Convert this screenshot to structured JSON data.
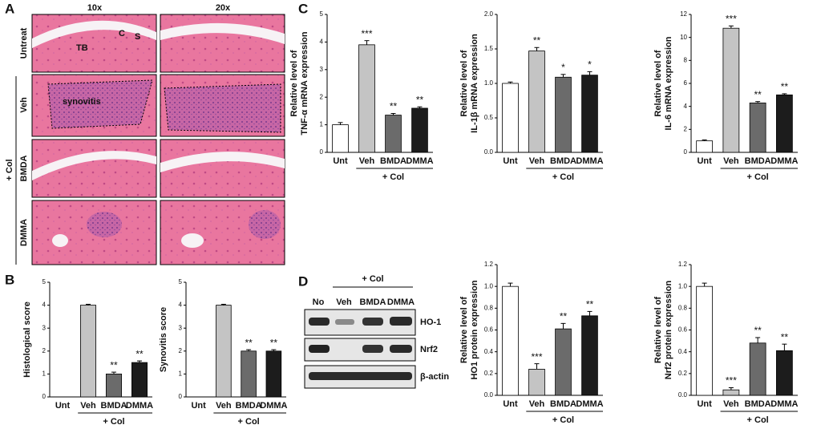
{
  "panels": {
    "A": {
      "letter": "A",
      "columns": [
        "10x",
        "20x"
      ],
      "rows": [
        "Untreat",
        "Veh",
        "BMDA",
        "DMMA"
      ],
      "group": "+ Col",
      "marks": [
        "C",
        "S",
        "TB"
      ],
      "region": "synovitis"
    },
    "B": {
      "letter": "B"
    },
    "C": {
      "letter": "C"
    },
    "D": {
      "letter": "D",
      "lanes": [
        "No",
        "Veh",
        "BMDA",
        "DMMA"
      ],
      "group": "+ Col",
      "proteins": [
        "HO-1",
        "Nrf2",
        "β-actin"
      ]
    }
  },
  "chart_data": [
    {
      "type": "bar",
      "ylabel": [
        "Histological score"
      ],
      "categories": [
        "Unt",
        "Veh",
        "BMDA",
        "DMMA"
      ],
      "values": [
        0,
        4,
        1,
        1.5
      ],
      "errors": [
        0,
        0.04,
        0.08,
        0.07
      ],
      "sig": [
        null,
        null,
        "**",
        "**"
      ],
      "group": "+ Col",
      "colors": [
        "#ffffff",
        "#c4c4c4",
        "#6b6b6b",
        "#1c1c1c"
      ],
      "ylim": [
        0,
        5
      ],
      "yticks": [
        0,
        1,
        2,
        3,
        4,
        5
      ]
    },
    {
      "type": "bar",
      "ylabel": [
        "Synovitis score"
      ],
      "categories": [
        "Unt",
        "Veh",
        "BMDA",
        "DMMA"
      ],
      "values": [
        0,
        4,
        2,
        2
      ],
      "errors": [
        0,
        0.04,
        0.06,
        0.06
      ],
      "sig": [
        null,
        null,
        "**",
        "**"
      ],
      "group": "+ Col",
      "colors": [
        "#ffffff",
        "#c4c4c4",
        "#6b6b6b",
        "#1c1c1c"
      ],
      "ylim": [
        0,
        5
      ],
      "yticks": [
        0,
        1,
        2,
        3,
        4,
        5
      ]
    },
    {
      "type": "bar",
      "ylabel": [
        "Relative level of",
        "TNF-α mRNA expression"
      ],
      "categories": [
        "Unt",
        "Veh",
        "BMDA",
        "DMMA"
      ],
      "values": [
        1,
        3.9,
        1.35,
        1.6
      ],
      "errors": [
        0.08,
        0.15,
        0.06,
        0.05
      ],
      "sig": [
        null,
        "***",
        "**",
        "**"
      ],
      "group": "+ Col",
      "colors": [
        "#ffffff",
        "#c4c4c4",
        "#6b6b6b",
        "#1c1c1c"
      ],
      "ylim": [
        0,
        5
      ],
      "yticks": [
        0,
        1,
        2,
        3,
        4,
        5
      ]
    },
    {
      "type": "bar",
      "ylabel": [
        "Relative level of",
        "IL-1β mRNA expression"
      ],
      "categories": [
        "Unt",
        "Veh",
        "BMDA",
        "DMMA"
      ],
      "values": [
        1,
        1.47,
        1.09,
        1.12
      ],
      "errors": [
        0.02,
        0.05,
        0.04,
        0.05
      ],
      "sig": [
        null,
        "**",
        "*",
        "*"
      ],
      "group": "+ Col",
      "colors": [
        "#ffffff",
        "#c4c4c4",
        "#6b6b6b",
        "#1c1c1c"
      ],
      "ylim": [
        0,
        2
      ],
      "yticks": [
        {
          "value": 0,
          "label": "0.0"
        },
        {
          "value": 0.5,
          "label": "0.5"
        },
        {
          "value": 1,
          "label": "1.0"
        },
        {
          "value": 1.5,
          "label": "1.5"
        },
        {
          "value": 2,
          "label": "2.0"
        }
      ]
    },
    {
      "type": "bar",
      "ylabel": [
        "Relative level of",
        "IL-6 mRNA expression"
      ],
      "categories": [
        "Unt",
        "Veh",
        "BMDA",
        "DMMA"
      ],
      "values": [
        1,
        10.8,
        4.3,
        5
      ],
      "errors": [
        0.08,
        0.2,
        0.12,
        0.1
      ],
      "sig": [
        null,
        "***",
        "**",
        "**"
      ],
      "group": "+ Col",
      "colors": [
        "#ffffff",
        "#c4c4c4",
        "#6b6b6b",
        "#1c1c1c"
      ],
      "ylim": [
        0,
        12
      ],
      "yticks": [
        0,
        2,
        4,
        6,
        8,
        10,
        12
      ]
    },
    {
      "type": "bar",
      "ylabel": [
        "Relative level of",
        "HO1 protein expression"
      ],
      "categories": [
        "Unt",
        "Veh",
        "BMDA",
        "DMMA"
      ],
      "values": [
        1,
        0.24,
        0.61,
        0.73
      ],
      "errors": [
        0.03,
        0.05,
        0.05,
        0.04
      ],
      "sig": [
        null,
        "***",
        "**",
        "**"
      ],
      "group": "+ Col",
      "colors": [
        "#ffffff",
        "#c4c4c4",
        "#6b6b6b",
        "#1c1c1c"
      ],
      "ylim": [
        0,
        1.2
      ],
      "yticks": [
        {
          "value": 0,
          "label": "0.0"
        },
        {
          "value": 0.2,
          "label": "0.2"
        },
        {
          "value": 0.4,
          "label": "0.4"
        },
        {
          "value": 0.6,
          "label": "0.6"
        },
        {
          "value": 0.8,
          "label": "0.8"
        },
        {
          "value": 1,
          "label": "1.0"
        },
        {
          "value": 1.2,
          "label": "1.2"
        }
      ]
    },
    {
      "type": "bar",
      "ylabel": [
        "Relative level of",
        "Nrf2 protein expression"
      ],
      "categories": [
        "Unt",
        "Veh",
        "BMDA",
        "DMMA"
      ],
      "values": [
        1,
        0.05,
        0.48,
        0.41
      ],
      "errors": [
        0.03,
        0.02,
        0.05,
        0.06
      ],
      "sig": [
        null,
        "***",
        "**",
        "**"
      ],
      "group": "+ Col",
      "colors": [
        "#ffffff",
        "#c4c4c4",
        "#6b6b6b",
        "#1c1c1c"
      ],
      "ylim": [
        0,
        1.2
      ],
      "yticks": [
        {
          "value": 0,
          "label": "0.0"
        },
        {
          "value": 0.2,
          "label": "0.2"
        },
        {
          "value": 0.4,
          "label": "0.4"
        },
        {
          "value": 0.6,
          "label": "0.6"
        },
        {
          "value": 0.8,
          "label": "0.8"
        },
        {
          "value": 1,
          "label": "1.0"
        },
        {
          "value": 1.2,
          "label": "1.2"
        }
      ]
    }
  ]
}
